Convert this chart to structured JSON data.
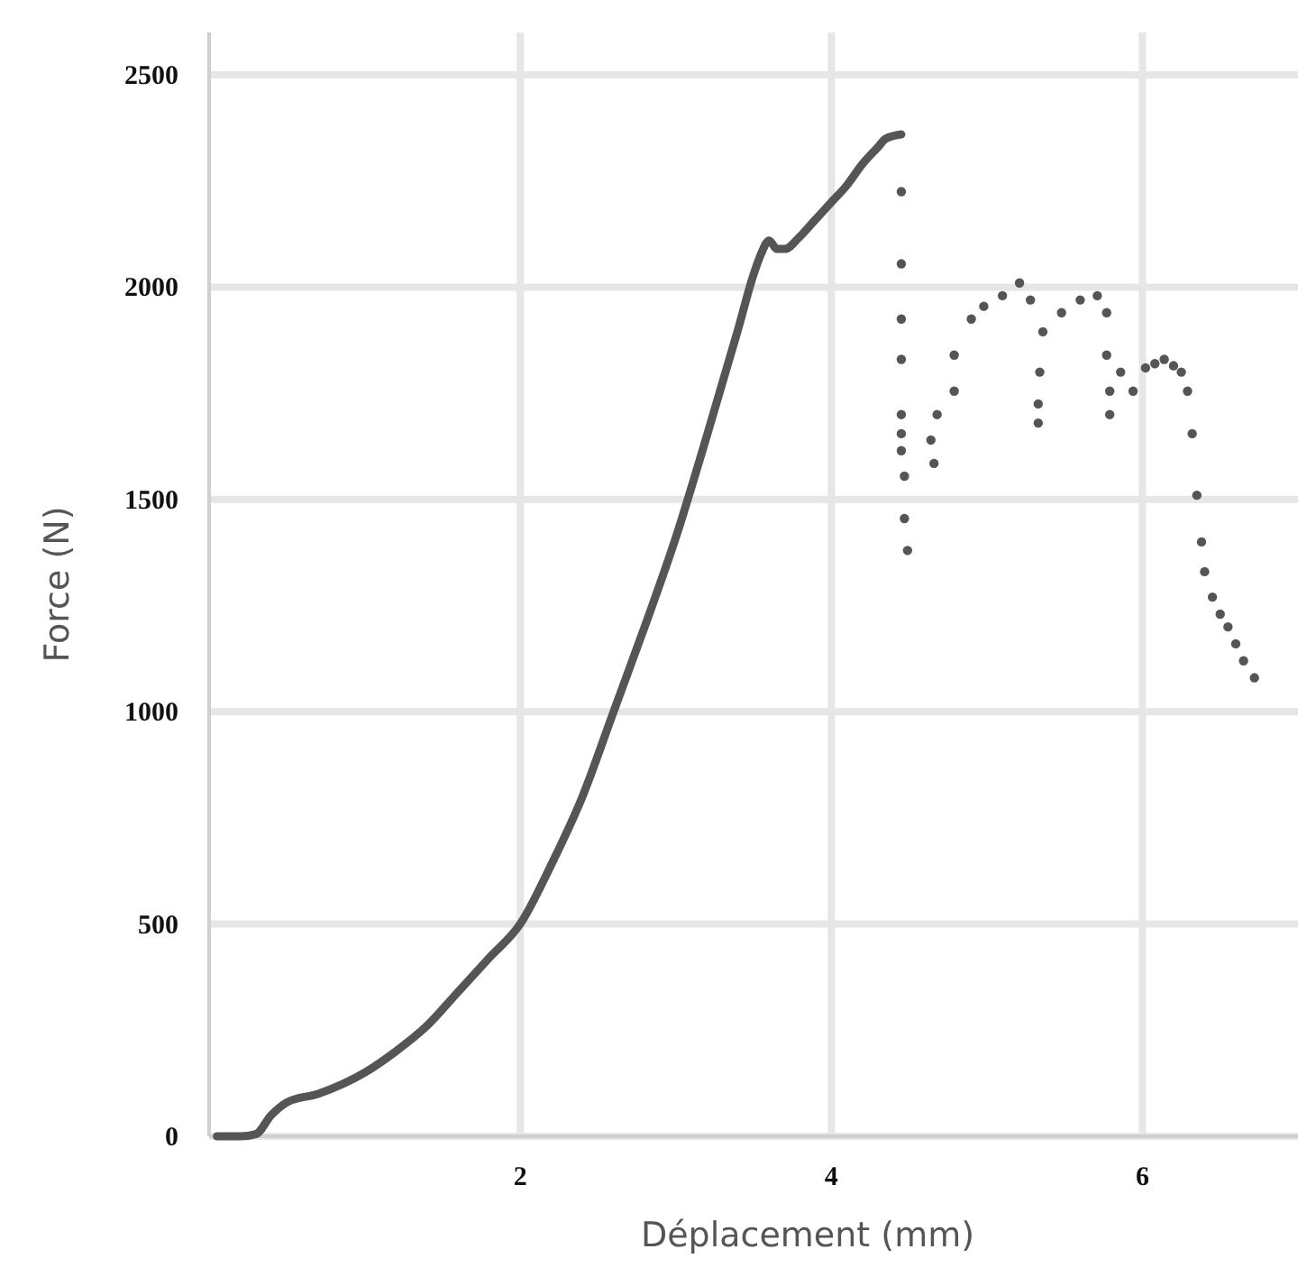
{
  "chart_data": {
    "type": "scatter",
    "xlabel": "Déplacement (mm)",
    "ylabel": "Force (N)",
    "xlim": [
      0,
      7
    ],
    "ylim": [
      0,
      2600
    ],
    "xticks": [
      2,
      4,
      6
    ],
    "yticks": [
      0,
      500,
      1000,
      1500,
      2000,
      2500
    ],
    "grid": true,
    "series": [
      {
        "type": "line",
        "marker": "none",
        "color": "#555555",
        "x": [
          0.05,
          0.2,
          0.3,
          0.4,
          0.5,
          0.7,
          1.0,
          1.2,
          1.4,
          1.6,
          1.8,
          2.0,
          2.2,
          2.4,
          2.6,
          2.8,
          3.0,
          3.2,
          3.4,
          3.5,
          3.55,
          3.6,
          3.65,
          3.7,
          3.8,
          3.9,
          4.0,
          4.1,
          4.2,
          4.3,
          4.35,
          4.45
        ],
        "values": [
          0,
          0,
          5,
          50,
          80,
          100,
          150,
          200,
          260,
          340,
          420,
          500,
          640,
          800,
          1000,
          1200,
          1410,
          1650,
          1900,
          2030,
          2080,
          2110,
          2090,
          2090,
          2120,
          2160,
          2200,
          2240,
          2290,
          2330,
          2350,
          2360
        ]
      },
      {
        "marker": "circle",
        "color": "#555555",
        "x": [
          4.45,
          4.45,
          4.45,
          4.45,
          4.45,
          4.45,
          4.45,
          4.47,
          4.47,
          4.49,
          4.64,
          4.66,
          4.68,
          4.79,
          4.79,
          4.9,
          4.98,
          5.1,
          5.21,
          5.28,
          5.34,
          5.33,
          5.33,
          5.36,
          5.48,
          5.6,
          5.71,
          5.77,
          5.77,
          5.79,
          5.79,
          5.86,
          5.94,
          6.02,
          6.08,
          6.14,
          6.2,
          6.25,
          6.29,
          6.32,
          6.35,
          6.38,
          6.4,
          6.45,
          6.5,
          6.55,
          6.6,
          6.65,
          6.72
        ],
        "values": [
          2225,
          2055,
          1925,
          1830,
          1700,
          1655,
          1615,
          1555,
          1455,
          1380,
          1640,
          1585,
          1700,
          1755,
          1840,
          1925,
          1955,
          1980,
          2010,
          1970,
          1800,
          1725,
          1680,
          1895,
          1940,
          1970,
          1980,
          1940,
          1840,
          1755,
          1700,
          1800,
          1755,
          1810,
          1820,
          1830,
          1815,
          1800,
          1755,
          1655,
          1510,
          1400,
          1330,
          1270,
          1230,
          1200,
          1160,
          1120,
          1080
        ]
      }
    ]
  }
}
